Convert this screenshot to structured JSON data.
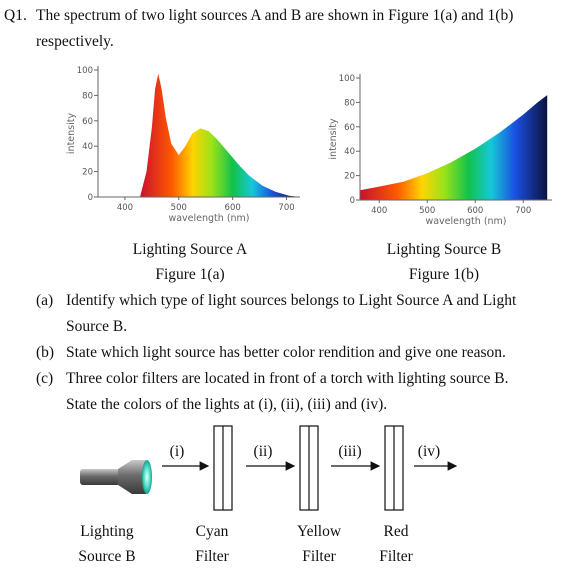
{
  "question": {
    "number": "Q1.",
    "lines": [
      "The spectrum of two light sources A and B are shown in Figure 1(a) and 1(b)",
      "respectively."
    ]
  },
  "figures": [
    {
      "type": "area",
      "ylabel": "intensity",
      "xlabel": "wavelength (nm)",
      "xlim": [
        350,
        725
      ],
      "ylim": [
        0,
        100
      ],
      "xticks": [
        400,
        500,
        600,
        700
      ],
      "yticks": [
        0,
        20,
        40,
        60,
        80,
        100
      ],
      "x": [
        428,
        440,
        450,
        456,
        462,
        468,
        476,
        486,
        500,
        512,
        525,
        540,
        555,
        570,
        590,
        610,
        630,
        655,
        680,
        705,
        725
      ],
      "values": [
        0,
        20,
        55,
        85,
        97,
        85,
        62,
        42,
        33,
        40,
        50,
        54,
        52,
        46,
        36,
        26,
        17,
        9,
        4,
        1,
        0
      ],
      "caption": "Lighting Source A",
      "figure_label": "Figure 1(a)"
    },
    {
      "type": "area",
      "ylabel": "intensity",
      "xlabel": "wavelength (nm)",
      "xlim": [
        360,
        760
      ],
      "ylim": [
        0,
        100
      ],
      "xticks": [
        400,
        500,
        600,
        700
      ],
      "yticks": [
        0,
        20,
        40,
        60,
        80,
        100
      ],
      "x": [
        360,
        400,
        450,
        500,
        550,
        600,
        650,
        700,
        730,
        750
      ],
      "values": [
        8,
        11,
        15,
        22,
        31,
        42,
        55,
        70,
        80,
        86
      ],
      "caption": "Lighting Source B",
      "figure_label": "Figure 1(b)"
    }
  ],
  "parts": [
    {
      "label": "(a)",
      "lines": [
        "Identify which type of light sources belongs to Light Source A and Light",
        "Source B."
      ]
    },
    {
      "label": "(b)",
      "lines": [
        "State which light source has better color rendition and give one reason."
      ]
    },
    {
      "label": "(c)",
      "lines": [
        "Three color filters are located in front of a torch with lighting source B.",
        "State the colors of the lights at (i), (ii), (iii) and (iv)."
      ]
    }
  ],
  "diagram": {
    "arrows": [
      "(i)",
      "(ii)",
      "(iii)",
      "(iv)"
    ],
    "labels": [
      [
        "Lighting",
        "Source B"
      ],
      [
        "Cyan",
        "Filter"
      ],
      [
        "Yellow",
        "Filter"
      ],
      [
        "Red",
        "Filter"
      ]
    ]
  }
}
